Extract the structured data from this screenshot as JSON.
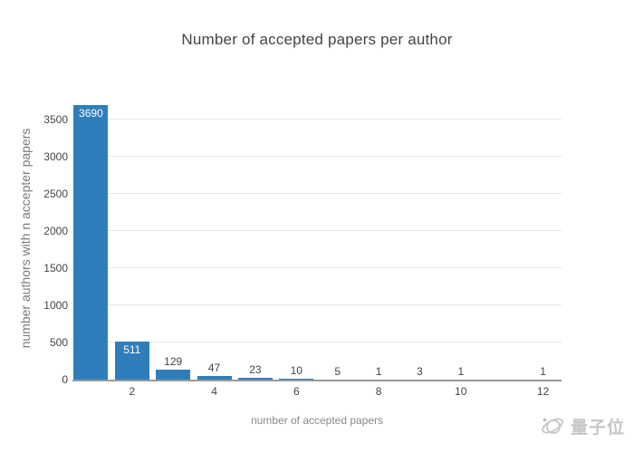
{
  "page": {
    "background": "#ffffff"
  },
  "chart_data": {
    "type": "bar",
    "title": "Number of accepted papers per author",
    "xlabel": "number of accepted papers",
    "ylabel": "number authors with n accepter papers",
    "x": [
      1,
      2,
      3,
      4,
      5,
      6,
      7,
      8,
      9,
      10,
      12
    ],
    "values": [
      3690,
      511,
      129,
      47,
      23,
      10,
      5,
      1,
      3,
      1,
      1
    ],
    "bar_labels": [
      "3690",
      "511",
      "129",
      "47",
      "23",
      "10",
      "5",
      "1",
      "3",
      "1",
      "1"
    ],
    "x_ticks": [
      "2",
      "4",
      "6",
      "8",
      "10",
      "12"
    ],
    "x_tick_values": [
      2,
      4,
      6,
      8,
      10,
      12
    ],
    "y_ticks": [
      "0",
      "500",
      "1000",
      "1500",
      "2000",
      "2500",
      "3000",
      "3500"
    ],
    "y_tick_values": [
      0,
      500,
      1000,
      1500,
      2000,
      2500,
      3000,
      3500
    ],
    "xlim": [
      0.55,
      12.45
    ],
    "ylim": [
      0,
      3790
    ],
    "grid": true,
    "legend_visible": false,
    "bar_color": "#2e7ebc",
    "gridline_color": "#e9e9e9",
    "axis_line_color": "#999999",
    "label_color_inside": "#ffffff",
    "label_color_outside": "#444444",
    "inside_label_threshold": 300
  },
  "watermark": {
    "brand": "量子位",
    "icon": "qbitai-atom-logo",
    "color": "#c6c6c6"
  }
}
